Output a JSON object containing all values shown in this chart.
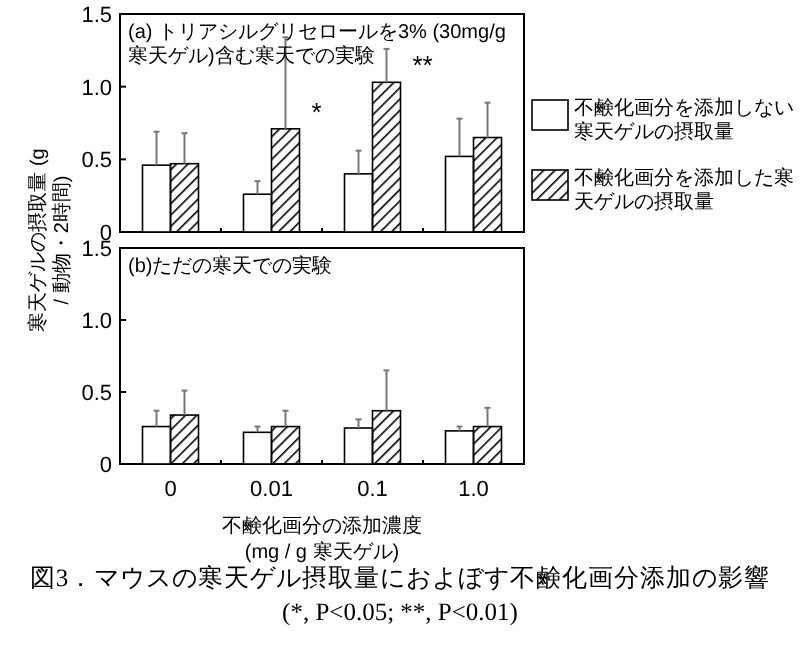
{
  "chart_data": [
    {
      "type": "bar",
      "title": "(a) トリアシルグリセロールを3% (30mg/g寒天ゲル)含む寒天での実験",
      "ylabel": "寒天ゲルの摂取量 (g / 動物・2時間)",
      "categories": [
        "0",
        "0.01",
        "0.1",
        "1.0"
      ],
      "series": [
        {
          "name": "不鹸化画分を添加しない寒天ゲルの摂取量",
          "color": "#ffffff",
          "values": [
            0.46,
            0.26,
            0.4,
            0.52
          ],
          "errors": [
            [
              0.46,
              0.69
            ],
            [
              0.26,
              0.35
            ],
            [
              0.4,
              0.56
            ],
            [
              0.52,
              0.78
            ]
          ]
        },
        {
          "name": "不鹸化画分を添加した寒天ゲルの摂取量",
          "color": "#000000",
          "values": [
            0.47,
            0.71,
            1.03,
            0.65
          ],
          "errors": [
            [
              0.47,
              0.68
            ],
            [
              0.71,
              1.34
            ],
            [
              1.03,
              1.26
            ],
            [
              0.65,
              0.89
            ]
          ]
        }
      ],
      "annotations": [
        {
          "text": "*",
          "x": "0.01",
          "y": 0.71
        },
        {
          "text": "**",
          "x": "0.1",
          "y": 1.03
        }
      ],
      "ylim": [
        0,
        1.5
      ],
      "yticks": [
        0,
        0.5,
        {
          "value": 1,
          "label": "1.0"
        },
        1.5
      ],
      "tick_labels": "y",
      "legend": "right"
    },
    {
      "type": "bar",
      "title": "(b)ただの寒天での実験",
      "xlabel": "不鹸化画分の添加濃度 (mg / g 寒天ゲル)",
      "categories": [
        "0",
        "0.01",
        "0.1",
        "1.0"
      ],
      "series": [
        {
          "color": "#ffffff",
          "values": [
            0.26,
            0.22,
            0.25,
            0.23
          ],
          "errors": [
            [
              0.26,
              0.37
            ],
            [
              0.22,
              0.26
            ],
            [
              0.25,
              0.31
            ],
            [
              0.23,
              0.26
            ]
          ]
        },
        {
          "color": "#000000",
          "values": [
            0.34,
            0.26,
            0.37,
            0.26
          ],
          "errors": [
            [
              0.34,
              0.51
            ],
            [
              0.26,
              0.37
            ],
            [
              0.37,
              0.65
            ],
            [
              0.26,
              0.39
            ]
          ]
        }
      ],
      "annotations": [
        "図3．マウスの寒天ゲル摂取量におよぼす不鹸化画分添加の影響",
        "(*, P<0.05; **, P<0.01)"
      ],
      "ylim": [
        0,
        1.5
      ],
      "yticks": [
        0,
        0.5,
        {
          "value": 1,
          "label": "1.0"
        },
        1.5
      ]
    }
  ]
}
